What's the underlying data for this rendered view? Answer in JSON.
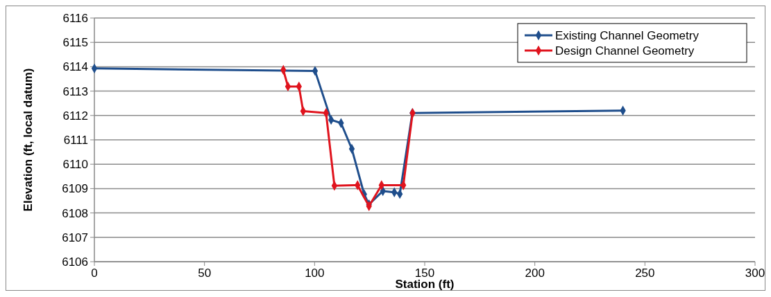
{
  "chart_data": {
    "type": "line",
    "xlabel": "Station (ft)",
    "ylabel": "Elevation (ft, local datum)",
    "xlim": [
      0,
      300
    ],
    "xticks": [
      0,
      50,
      100,
      150,
      200,
      250,
      300
    ],
    "ylim": [
      6106,
      6116
    ],
    "yticks": [
      6106,
      6107,
      6108,
      6109,
      6110,
      6111,
      6112,
      6113,
      6114,
      6115,
      6116
    ],
    "grid": "y",
    "legend": "top right",
    "marker": "diamond",
    "line_style": "solid",
    "series": [
      {
        "name": "Existing Channel Geometry",
        "color": "#1f4e8c",
        "x": [
          0,
          100.2,
          107.5,
          112,
          116.9,
          122.5,
          124.7,
          131,
          136.2,
          138.7,
          144.4,
          240
        ],
        "values": [
          6113.93,
          6113.83,
          6111.82,
          6111.69,
          6110.63,
          6108.77,
          6108.35,
          6108.9,
          6108.85,
          6108.78,
          6112.1,
          6112.2
        ]
      },
      {
        "name": "Design Channel Geometry",
        "color": "#e0141e",
        "x": [
          85.8,
          87.9,
          92.9,
          94.8,
          105.2,
          109,
          119.5,
          124.7,
          130.4,
          140.3,
          144.5
        ],
        "values": [
          6113.87,
          6113.19,
          6113.19,
          6112.18,
          6112.1,
          6109.12,
          6109.14,
          6108.28,
          6109.14,
          6109.14,
          6112.1
        ]
      }
    ]
  }
}
